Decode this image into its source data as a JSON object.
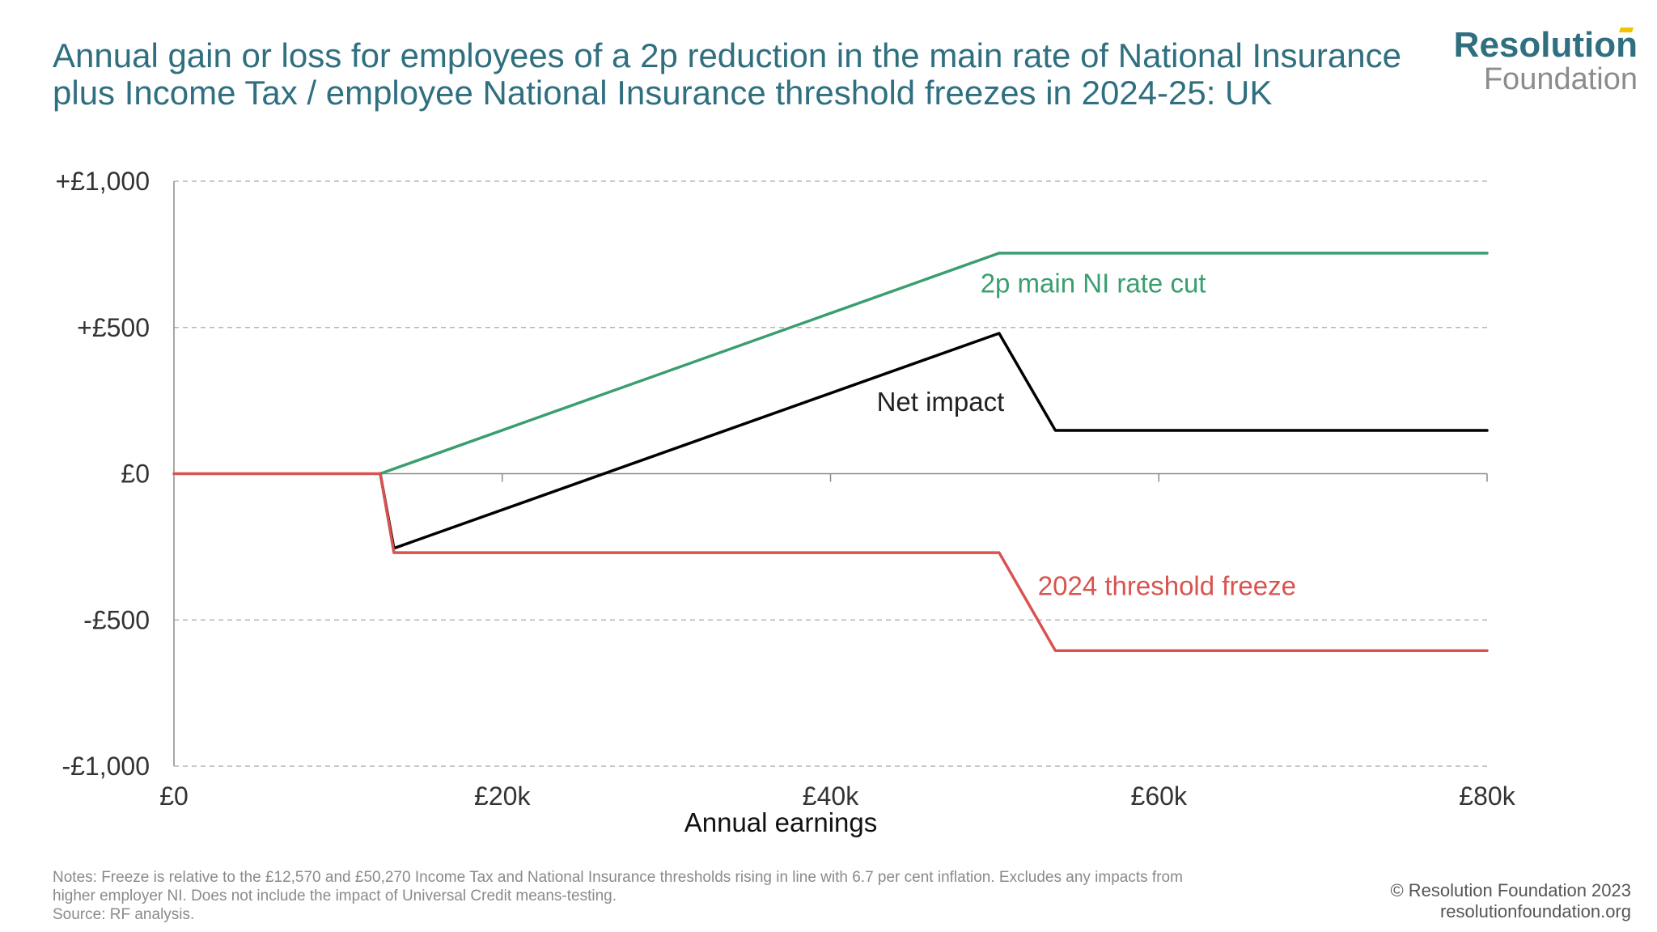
{
  "title": {
    "line1": "Annual gain or loss for employees of a 2p reduction in the main rate of National Insurance",
    "line2": "plus Income Tax / employee National Insurance threshold freezes in 2024-25: UK"
  },
  "logo": {
    "top": "Resolution",
    "bottom": "Foundation"
  },
  "chart_data": {
    "type": "line",
    "xlabel": "Annual earnings",
    "ylabel": "",
    "xlim": [
      0,
      80000
    ],
    "ylim": [
      -1000,
      1000
    ],
    "x_ticks": [
      {
        "value": 0,
        "label": "£0"
      },
      {
        "value": 20000,
        "label": "£20k"
      },
      {
        "value": 40000,
        "label": "£40k"
      },
      {
        "value": 60000,
        "label": "£60k"
      },
      {
        "value": 80000,
        "label": "£80k"
      }
    ],
    "y_ticks": [
      {
        "value": 1000,
        "label": "+£1,000"
      },
      {
        "value": 500,
        "label": "+£500"
      },
      {
        "value": 0,
        "label": "£0"
      },
      {
        "value": -500,
        "label": "-£500"
      },
      {
        "value": -1000,
        "label": "-£1,000"
      }
    ],
    "grid": true,
    "series": [
      {
        "name": "2p main NI rate cut",
        "color": "#3a9e6e",
        "points": [
          [
            12570,
            0
          ],
          [
            50270,
            754
          ],
          [
            80000,
            754
          ]
        ]
      },
      {
        "name": "Net impact",
        "color": "#000000",
        "points": [
          [
            12570,
            0
          ],
          [
            13400,
            -255
          ],
          [
            50270,
            480
          ],
          [
            53700,
            148
          ],
          [
            80000,
            148
          ]
        ]
      },
      {
        "name": "2024 threshold freeze",
        "color": "#d9534f",
        "points": [
          [
            0,
            0
          ],
          [
            12570,
            0
          ],
          [
            13400,
            -270
          ],
          [
            50270,
            -270
          ],
          [
            53700,
            -605
          ],
          [
            80000,
            -605
          ]
        ]
      }
    ],
    "annotations": [
      {
        "text": "2p main NI rate cut",
        "x": 56000,
        "y": 650,
        "color": "#3a9e6e"
      },
      {
        "text": "Net impact",
        "x": 46700,
        "y": 245,
        "color": "#222222"
      },
      {
        "text": "2024 threshold freeze",
        "x": 60500,
        "y": -385,
        "color": "#d9534f"
      }
    ]
  },
  "notes": {
    "line1": "Notes: Freeze is relative to the £12,570 and £50,270 Income Tax and National Insurance thresholds rising in line with 6.7 per cent inflation. Excludes any impacts from",
    "line2": "higher employer NI. Does not include the impact of Universal Credit means-testing.",
    "line3": "Source: RF analysis."
  },
  "copyright": {
    "line1": "© Resolution Foundation 2023",
    "line2": "resolutionfoundation.org"
  }
}
